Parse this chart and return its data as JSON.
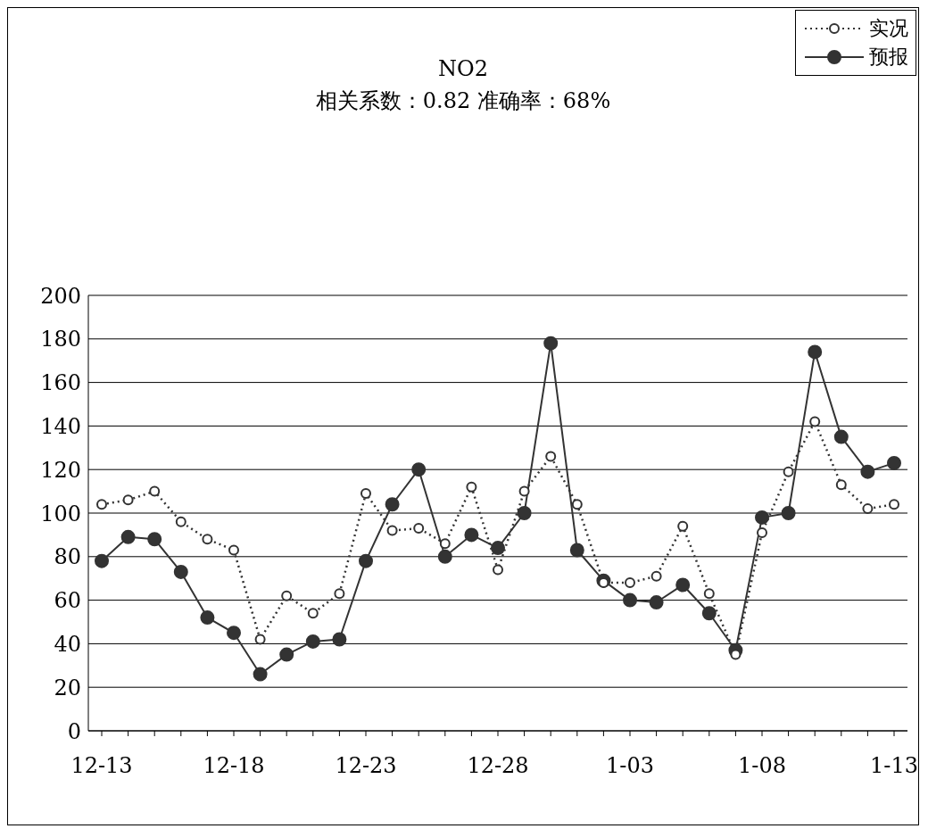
{
  "chart_data": {
    "type": "line",
    "title": "NO2",
    "subtitle": "相关系数：0.82 准确率：68%",
    "categories": [
      "12-13",
      null,
      null,
      null,
      null,
      "12-18",
      null,
      null,
      null,
      null,
      "12-23",
      null,
      null,
      null,
      null,
      "12-28",
      null,
      null,
      null,
      null,
      "1-03",
      null,
      null,
      null,
      null,
      "1-08",
      null,
      null,
      null,
      null,
      "1-13"
    ],
    "series": [
      {
        "name": "实况",
        "color": "#333333",
        "line_style": "dotted",
        "marker": "circle",
        "values": [
          104,
          106,
          110,
          96,
          88,
          83,
          42,
          62,
          54,
          63,
          109,
          92,
          93,
          86,
          112,
          74,
          110,
          126,
          104,
          68,
          68,
          71,
          94,
          63,
          35,
          91,
          119,
          142,
          113,
          102,
          104
        ]
      },
      {
        "name": "预报",
        "color": "#333333",
        "line_style": "solid",
        "marker": "circle",
        "values": [
          78,
          89,
          88,
          73,
          52,
          45,
          26,
          35,
          41,
          42,
          78,
          104,
          120,
          80,
          90,
          84,
          100,
          178,
          83,
          69,
          60,
          59,
          67,
          54,
          37,
          98,
          100,
          174,
          135,
          119,
          123
        ]
      }
    ],
    "ylim": [
      0,
      200
    ],
    "yticks": [
      0,
      20,
      40,
      60,
      80,
      100,
      120,
      140,
      160,
      180,
      200
    ],
    "grid": "y",
    "legend": "top right"
  }
}
